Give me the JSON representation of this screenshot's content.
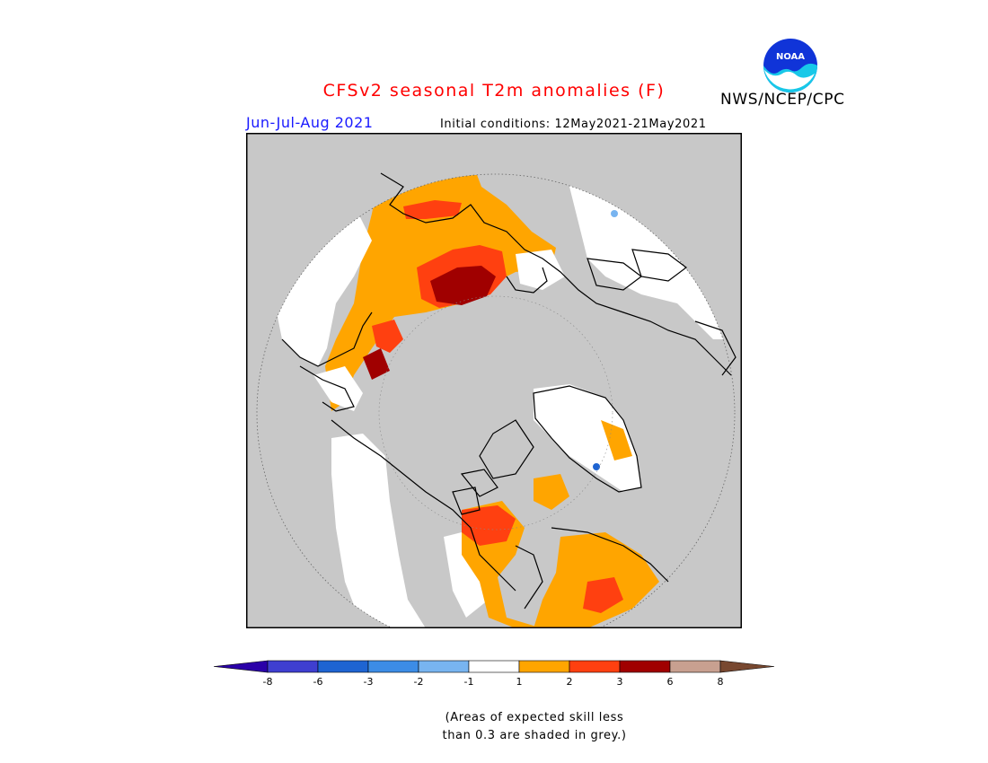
{
  "title": "CFSv2 seasonal T2m anomalies (F)",
  "period": "Jun-Jul-Aug 2021",
  "initial_conditions": "Initial conditions: 12May2021-21May2021",
  "agency": "NWS/NCEP/CPC",
  "logo_text": "NOAA",
  "note": {
    "line1": "(Areas of expected skill less",
    "line2": "than 0.3 are shaded in grey.)"
  },
  "colorbar": {
    "ticks": [
      "-8",
      "-6",
      "-3",
      "-2",
      "-1",
      "1",
      "2",
      "3",
      "6",
      "8"
    ],
    "colors": [
      "#2a00a8",
      "#3f3fd0",
      "#1e64d2",
      "#3c8ce6",
      "#78b4f0",
      "#ffffff",
      "#ffa500",
      "#ff4010",
      "#a00000",
      "#c8a090",
      "#784830"
    ]
  },
  "map_colors": {
    "no_skill_grey": "#c8c8c8",
    "anom_1_2": "#ffa500",
    "anom_2_3": "#ff4010",
    "anom_3_6": "#a00000",
    "anom_neg": "#3c8ce6",
    "neutral": "#ffffff"
  }
}
